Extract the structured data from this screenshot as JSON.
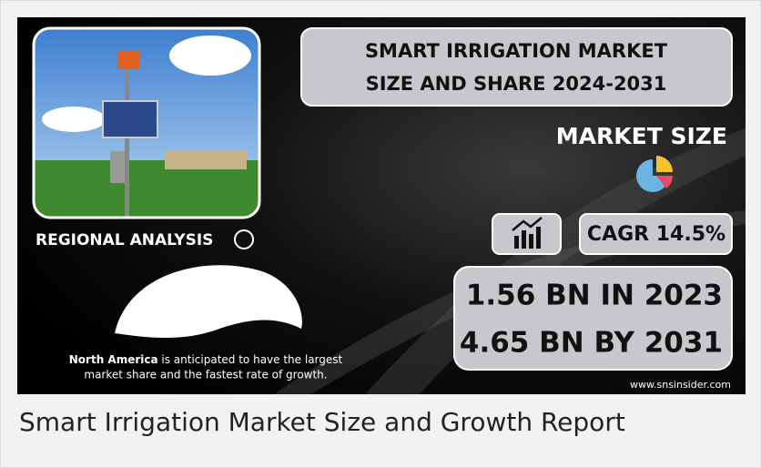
{
  "infographic": {
    "title_lines": [
      "SMART IRRIGATION MARKET",
      "SIZE AND SHARE 2024-2031"
    ],
    "market_size_label": "MARKET SIZE",
    "cagr": "CAGR 14.5%",
    "value_lines": [
      "1.56 BN IN 2023",
      "4.65 BN BY 2031"
    ],
    "regional_label": "REGIONAL ANALYSIS",
    "note": {
      "region": "North America",
      "line1": " is anticipated to have the largest",
      "line2": "market share and the fastest rate of growth."
    },
    "website": "www.snsinsider.com"
  },
  "caption": "Smart Irrigation Market Size and Growth Report"
}
